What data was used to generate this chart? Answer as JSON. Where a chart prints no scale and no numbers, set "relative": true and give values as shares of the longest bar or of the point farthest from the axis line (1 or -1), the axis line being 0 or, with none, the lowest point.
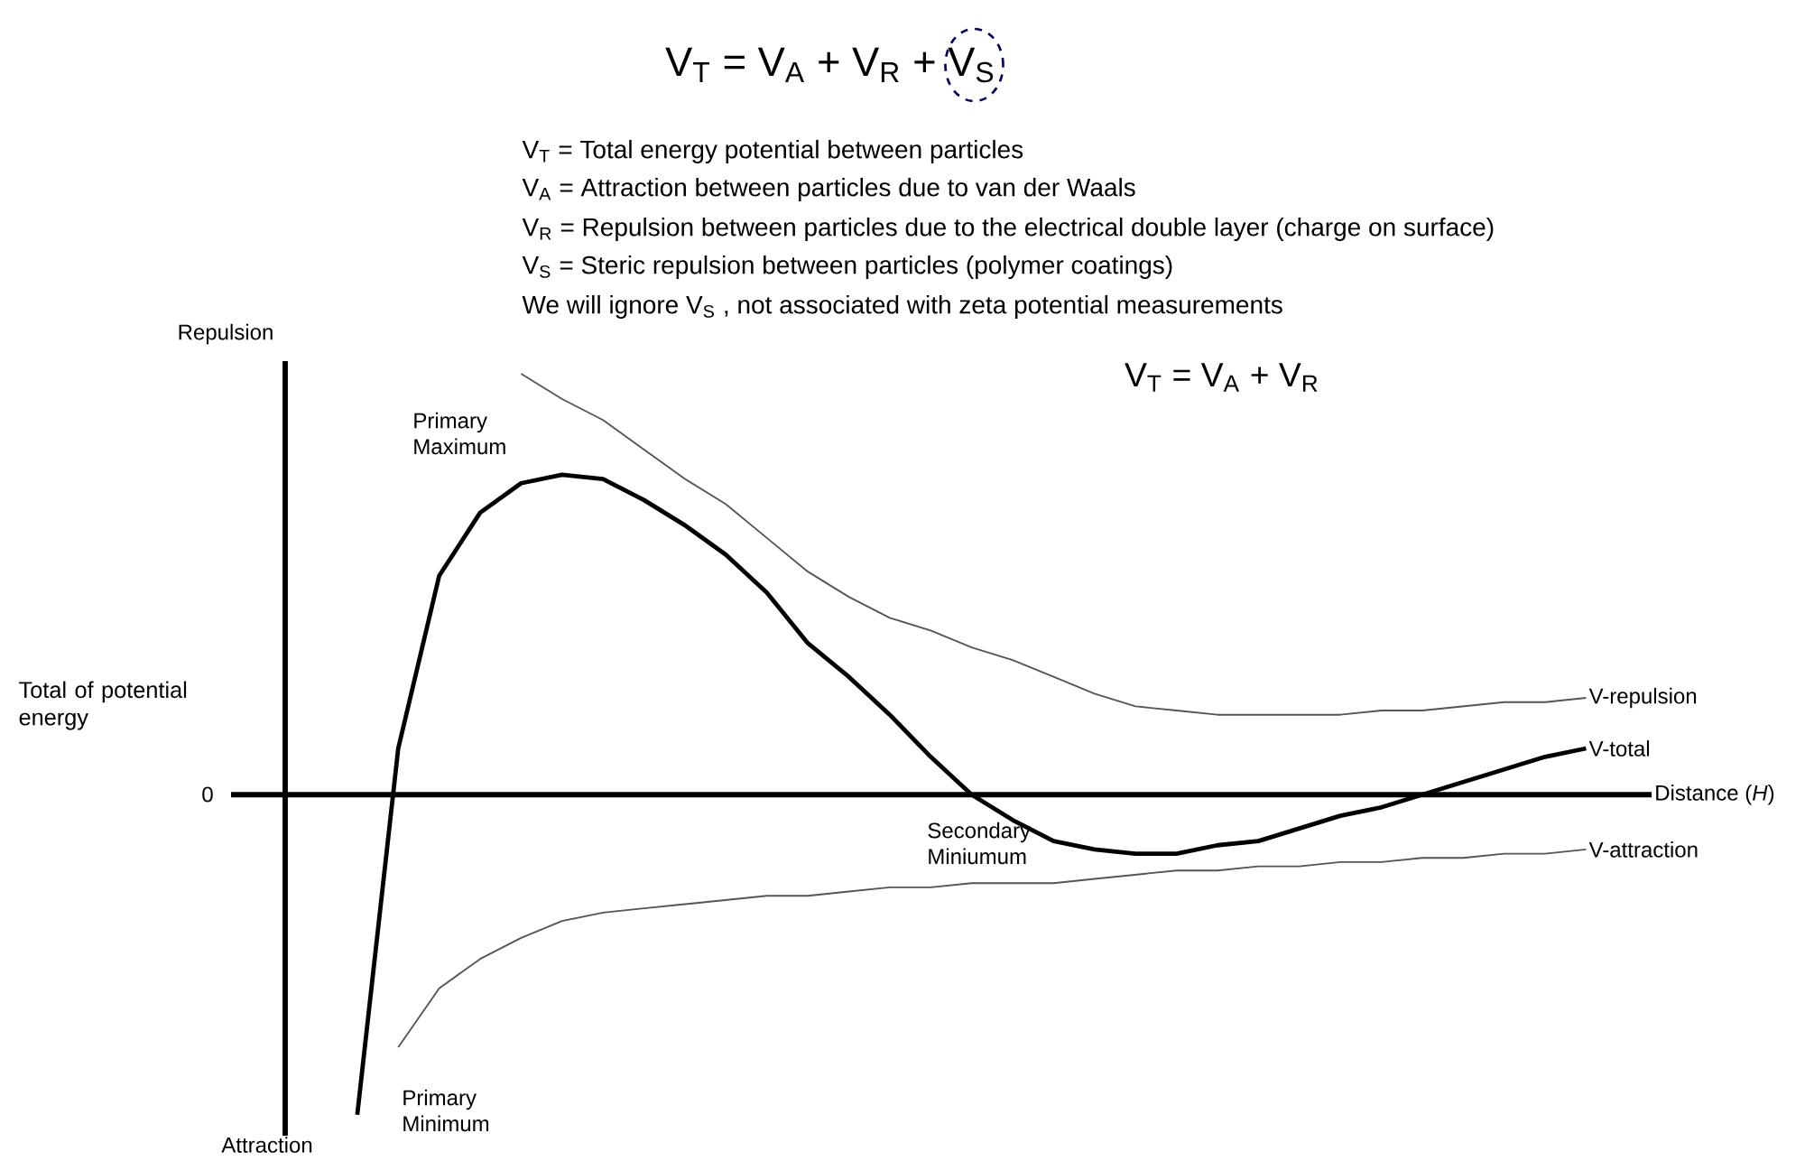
{
  "chart_data": {
    "type": "line",
    "relative": true,
    "title": "V$_{T}$ = V$_{A}$ + V$_{R}$ + V$_{S}$",
    "xlabel": "Distance (*H*)",
    "categories": [
      null,
      null,
      null,
      null,
      null,
      null,
      null,
      null,
      null,
      null,
      null,
      null,
      null,
      null,
      null,
      null,
      null,
      null,
      null,
      null,
      null,
      null,
      null,
      null,
      null,
      null,
      null,
      null,
      null,
      null,
      null,
      null
    ],
    "series": [
      {
        "name": "V-repulsion",
        "color": "#555555",
        "values": [
          null,
          null,
          null,
          null,
          1.0,
          0.94,
          0.89,
          0.82,
          0.75,
          0.69,
          0.61,
          0.53,
          0.47,
          0.42,
          0.39,
          0.35,
          0.32,
          0.28,
          0.24,
          0.21,
          0.2,
          0.19,
          0.19,
          0.19,
          0.19,
          0.2,
          0.2,
          0.21,
          0.22,
          0.22,
          0.23,
          null
        ]
      },
      {
        "name": "V-total",
        "color": "#000000",
        "values": [
          -0.76,
          0.11,
          0.52,
          0.67,
          0.74,
          0.76,
          0.75,
          0.7,
          0.64,
          0.57,
          0.48,
          0.36,
          0.28,
          0.19,
          0.09,
          0,
          -0.06,
          -0.11,
          -0.13,
          -0.14,
          -0.14,
          -0.12,
          -0.11,
          -0.08,
          -0.05,
          -0.03,
          0,
          0.03,
          0.06,
          0.09,
          0.11,
          null
        ]
      },
      {
        "name": "V-attraction",
        "color": "#555555",
        "values": [
          null,
          -0.6,
          -0.46,
          -0.39,
          -0.34,
          -0.3,
          -0.28,
          -0.27,
          -0.26,
          -0.25,
          -0.24,
          -0.24,
          -0.23,
          -0.22,
          -0.22,
          -0.21,
          -0.21,
          -0.21,
          -0.2,
          -0.19,
          -0.18,
          -0.18,
          -0.17,
          -0.17,
          -0.16,
          -0.16,
          -0.15,
          -0.15,
          -0.14,
          -0.14,
          -0.13,
          null
        ]
      }
    ],
    "annotations": [
      "V$_{T}$ = Total energy potential between particles",
      "V$_{A}$ = Attraction between particles due to van der Waals",
      "V$_{R}$ = Repulsion between particles due to the electrical double layer (charge on surface)",
      "V$_{S}$ = Steric repulsion between particles (polymer coatings)",
      "We will ignore V$_{S}$ , not associated with zeta potential measurements",
      "V$_{T}$ = V$_{A}$ + V$_{R}$",
      "Repulsion",
      "Attraction",
      "0",
      "Primary Maximum",
      "Secondary Miniumum",
      "Primary Minimum",
      "Total of potential energy"
    ]
  }
}
